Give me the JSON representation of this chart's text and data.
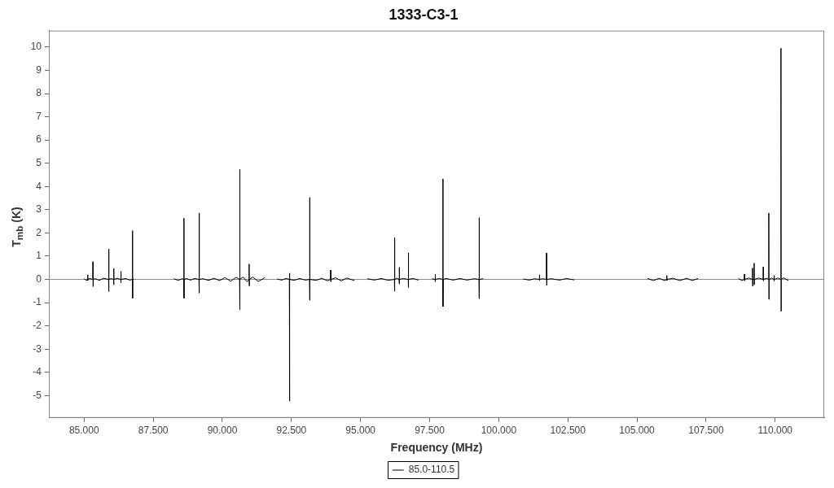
{
  "chart_data": {
    "type": "line",
    "title": "1333-C3-1",
    "xlabel": "Frequency (MHz)",
    "ylabel": "T$_{mb}$ (K)",
    "x": [
      85.0,
      85.08,
      85.125,
      85.13,
      85.135,
      85.14,
      85.2,
      85.315,
      85.32,
      85.325,
      85.33,
      85.4,
      85.55,
      85.7,
      85.885,
      85.89,
      85.895,
      85.9,
      85.98,
      86.065,
      86.07,
      86.075,
      86.08,
      86.2,
      86.325,
      86.33,
      86.335,
      86.34,
      86.5,
      86.65,
      86.745,
      86.75,
      86.755,
      86.76,
      86.8,
      87.5,
      88.25,
      88.4,
      88.55,
      88.605,
      88.61,
      88.615,
      88.62,
      88.7,
      88.85,
      89.0,
      89.155,
      89.16,
      89.165,
      89.17,
      89.3,
      89.5,
      89.7,
      89.9,
      90.1,
      90.3,
      90.5,
      90.625,
      90.63,
      90.635,
      90.64,
      90.75,
      90.9,
      90.965,
      90.97,
      90.975,
      90.98,
      91.1,
      91.3,
      91.54,
      91.76,
      91.98,
      92.15,
      92.3,
      92.425,
      92.43,
      92.435,
      92.44,
      92.6,
      92.8,
      93.0,
      93.155,
      93.16,
      93.165,
      93.17,
      93.4,
      93.6,
      93.8,
      93.915,
      93.92,
      93.925,
      93.93,
      94.1,
      94.3,
      94.5,
      94.78,
      95.0,
      95.25,
      95.5,
      95.75,
      96.0,
      96.225,
      96.23,
      96.235,
      96.24,
      96.32,
      96.395,
      96.4,
      96.405,
      96.41,
      96.55,
      96.725,
      96.73,
      96.735,
      96.74,
      96.9,
      97.1,
      97.35,
      97.59,
      97.695,
      97.7,
      97.705,
      97.71,
      97.85,
      97.975,
      97.98,
      97.985,
      97.99,
      98.1,
      98.35,
      98.6,
      98.85,
      99.1,
      99.285,
      99.29,
      99.295,
      99.3,
      99.44,
      100.2,
      100.89,
      101.1,
      101.3,
      101.465,
      101.47,
      101.475,
      101.48,
      101.6,
      101.725,
      101.73,
      101.735,
      101.74,
      101.9,
      102.2,
      102.45,
      102.73,
      104.0,
      105.38,
      105.6,
      105.8,
      106.0,
      106.075,
      106.08,
      106.085,
      106.09,
      106.3,
      106.55,
      106.8,
      107.0,
      107.21,
      108.0,
      108.67,
      108.8,
      108.885,
      108.89,
      108.895,
      108.9,
      109.05,
      109.175,
      109.18,
      109.185,
      109.19,
      109.235,
      109.24,
      109.245,
      109.25,
      109.4,
      109.565,
      109.57,
      109.575,
      109.58,
      109.7,
      109.765,
      109.77,
      109.775,
      109.78,
      109.88,
      109.955,
      109.96,
      109.965,
      109.97,
      110.1,
      110.205,
      110.21,
      110.215,
      110.22,
      110.3,
      110.48
    ],
    "series": [
      {
        "name": "85.0-110.5",
        "color": "#000000",
        "values": [
          0.03,
          -0.04,
          0,
          0.2,
          -0.05,
          0,
          0.04,
          0,
          0.76,
          -0.31,
          0,
          0.03,
          -0.04,
          0.05,
          0,
          1.31,
          -0.52,
          0,
          0.04,
          0,
          0.47,
          -0.23,
          0,
          0.05,
          0,
          0.35,
          -0.15,
          0,
          0.04,
          -0.03,
          0,
          2.1,
          -0.81,
          0,
          0.02,
          null,
          0.03,
          -0.04,
          0.03,
          0,
          2.63,
          -0.81,
          0,
          0.04,
          -0.03,
          0.04,
          0,
          2.86,
          -0.59,
          0,
          0.03,
          -0.04,
          0.05,
          -0.05,
          0.08,
          -0.08,
          0.09,
          0,
          4.73,
          -1.31,
          0,
          0.1,
          -0.1,
          0,
          0.66,
          -0.28,
          0,
          0.1,
          -0.09,
          0.08,
          null,
          0.02,
          -0.03,
          0.04,
          0,
          0.27,
          -5.24,
          0,
          -0.04,
          0.04,
          -0.03,
          0,
          3.53,
          -0.9,
          0,
          -0.04,
          0.05,
          -0.06,
          0,
          0.4,
          -0.1,
          0,
          0.07,
          -0.06,
          0.06,
          -0.05,
          null,
          0.03,
          -0.03,
          0.04,
          -0.04,
          0,
          1.8,
          -0.51,
          0,
          0.05,
          0,
          0.52,
          -0.2,
          0,
          0.04,
          0,
          1.14,
          -0.35,
          0,
          0.04,
          -0.03,
          null,
          0.03,
          0,
          0.23,
          -0.1,
          0,
          0.04,
          0,
          4.33,
          -1.17,
          0,
          0.04,
          -0.03,
          0.04,
          -0.03,
          0.03,
          0,
          2.66,
          -0.83,
          0,
          0.03,
          null,
          0.02,
          -0.03,
          0.03,
          0,
          0.2,
          -0.04,
          0,
          0.03,
          0,
          1.14,
          -0.26,
          0,
          0.03,
          -0.03,
          0.04,
          -0.02,
          null,
          0.04,
          -0.05,
          0.05,
          -0.05,
          0,
          0.17,
          -0.04,
          0,
          0.05,
          -0.05,
          0.05,
          -0.05,
          0.04,
          null,
          0.04,
          -0.05,
          0,
          0.23,
          -0.06,
          0,
          0.06,
          0,
          0.49,
          -0.29,
          0,
          0,
          0.7,
          -0.23,
          0,
          0.06,
          0,
          0.54,
          -0.06,
          0,
          0.05,
          0,
          2.86,
          -0.86,
          0,
          0.06,
          0,
          0.17,
          -0.07,
          0,
          0.06,
          0,
          9.95,
          -1.37,
          0,
          0.07,
          -0.05
        ]
      }
    ],
    "xlim": [
      83.725,
      111.775
    ],
    "ylim": [
      -5.96,
      10.71
    ],
    "xticks": [
      {
        "value": 85,
        "label": "85.000"
      },
      {
        "value": 87.5,
        "label": "87.500"
      },
      {
        "value": 90,
        "label": "90.000"
      },
      {
        "value": 92.5,
        "label": "92.500"
      },
      {
        "value": 95,
        "label": "95.000"
      },
      {
        "value": 97.5,
        "label": "97.500"
      },
      {
        "value": 100,
        "label": "100.000"
      },
      {
        "value": 102.5,
        "label": "102.500"
      },
      {
        "value": 105,
        "label": "105.000"
      },
      {
        "value": 107.5,
        "label": "107.500"
      },
      {
        "value": 110,
        "label": "110.000"
      }
    ],
    "yticks": [
      -5,
      -4,
      -3,
      -2,
      -1,
      0,
      1,
      2,
      3,
      4,
      5,
      6,
      7,
      8,
      9,
      10
    ],
    "ref_lines": [
      {
        "axis": "y",
        "value": 0,
        "color": "#888888"
      }
    ],
    "marker": "none",
    "legend": "bottom"
  }
}
